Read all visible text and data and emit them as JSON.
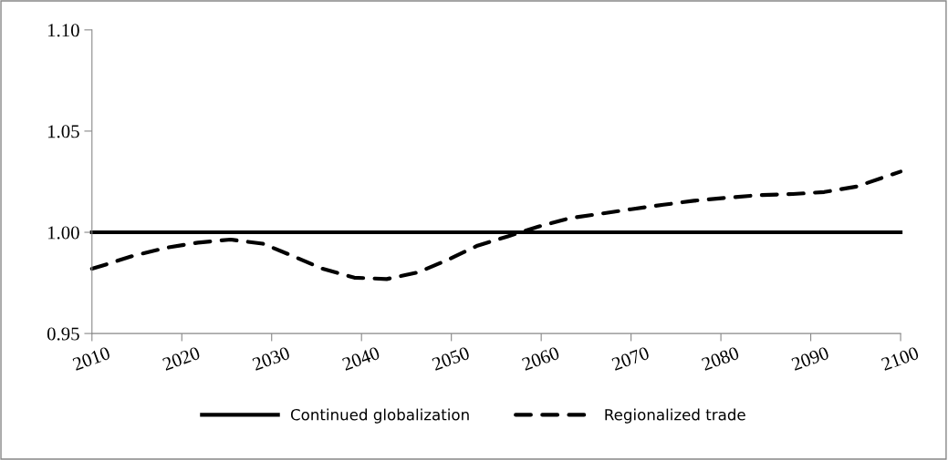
{
  "chart_data": {
    "type": "line",
    "legend": "bottom",
    "marker": "none",
    "grid": false,
    "xlim": [
      2010,
      2100
    ],
    "xticks": [
      2010,
      2020,
      2030,
      2040,
      2050,
      2060,
      2070,
      2080,
      2090,
      2100
    ],
    "ylim": [
      0.95,
      1.1
    ],
    "yticks": [
      {
        "value": 0.95,
        "label": "0.95"
      },
      {
        "value": 1.0,
        "label": "1.00"
      },
      {
        "value": 1.05,
        "label": "1.05"
      },
      {
        "value": 1.1,
        "label": "1.10"
      }
    ],
    "series": [
      {
        "name": "Continued globalization",
        "color": "#000000",
        "line_style": "solid",
        "x": [
          2010,
          2100
        ],
        "values": [
          1.0,
          1.0
        ]
      },
      {
        "name": "Regionalized trade",
        "color": "#000000",
        "line_style": "dashed",
        "x": [
          2010,
          2011.2,
          2014.6,
          2018.2,
          2021.8,
          2025.4,
          2029.0,
          2032.3,
          2035.6,
          2039.2,
          2042.8,
          2046.3,
          2049.5,
          2052.9,
          2056.3,
          2059.7,
          2063.1,
          2066.5,
          2070.0,
          2073.6,
          2077.0,
          2080.7,
          2084.3,
          2088.0,
          2091.5,
          2095.1,
          2098.6,
          2100
        ],
        "values": [
          0.982,
          0.9836,
          0.9884,
          0.9923,
          0.9949,
          0.9964,
          0.9944,
          0.9884,
          0.9821,
          0.9776,
          0.9769,
          0.9802,
          0.9862,
          0.9934,
          0.998,
          1.0028,
          1.0069,
          1.0091,
          1.0114,
          1.0136,
          1.0156,
          1.0171,
          1.0184,
          1.0189,
          1.0199,
          1.0226,
          1.0279,
          1.03
        ]
      }
    ]
  }
}
